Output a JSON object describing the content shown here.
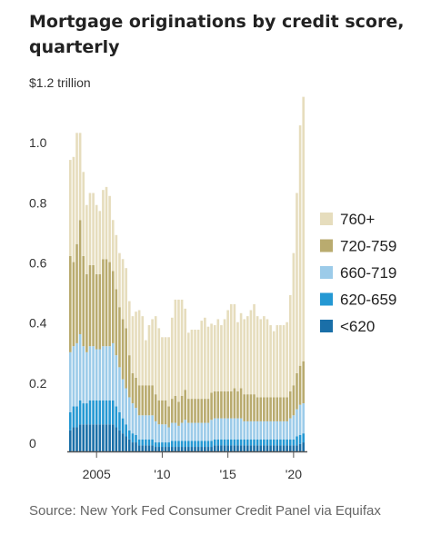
{
  "title": "Mortgage originations by credit score, quarterly",
  "source": "Source: New York Fed Consumer Credit Panel via Equifax",
  "chart_data": {
    "type": "bar",
    "stacked": true,
    "unit": "trillion",
    "ylim": [
      0,
      1.2
    ],
    "y_ticks": [
      {
        "value": 1.2,
        "label": "$1.2 trillion"
      },
      {
        "value": 1.0,
        "label": "1.0"
      },
      {
        "value": 0.8,
        "label": "0.8"
      },
      {
        "value": 0.6,
        "label": "0.6"
      },
      {
        "value": 0.4,
        "label": "0.4"
      },
      {
        "value": 0.2,
        "label": "0.2"
      },
      {
        "value": 0,
        "label": "0"
      }
    ],
    "x_ticks": [
      {
        "index": 8,
        "label": "2005"
      },
      {
        "index": 28,
        "label": "'10"
      },
      {
        "index": 48,
        "label": "'15"
      },
      {
        "index": 68,
        "label": "'20"
      }
    ],
    "x_start": "2003 Q1",
    "x_end": "2020 Q4",
    "legend_position": "right",
    "grid": false,
    "series": [
      {
        "name": "<620",
        "color": "#1a6fa8",
        "values": [
          0.07,
          0.08,
          0.08,
          0.09,
          0.09,
          0.09,
          0.09,
          0.09,
          0.09,
          0.09,
          0.09,
          0.09,
          0.09,
          0.09,
          0.08,
          0.07,
          0.06,
          0.05,
          0.04,
          0.03,
          0.03,
          0.02,
          0.02,
          0.02,
          0.02,
          0.02,
          0.015,
          0.015,
          0.015,
          0.015,
          0.015,
          0.015,
          0.015,
          0.015,
          0.015,
          0.015,
          0.015,
          0.015,
          0.015,
          0.015,
          0.015,
          0.015,
          0.015,
          0.015,
          0.02,
          0.02,
          0.02,
          0.02,
          0.02,
          0.02,
          0.02,
          0.02,
          0.02,
          0.02,
          0.02,
          0.02,
          0.02,
          0.02,
          0.02,
          0.02,
          0.02,
          0.02,
          0.02,
          0.02,
          0.02,
          0.02,
          0.02,
          0.02,
          0.02,
          0.02,
          0.025,
          0.03
        ]
      },
      {
        "name": "620-659",
        "color": "#2498d3",
        "values": [
          0.06,
          0.07,
          0.07,
          0.08,
          0.07,
          0.07,
          0.08,
          0.08,
          0.08,
          0.08,
          0.08,
          0.08,
          0.08,
          0.08,
          0.07,
          0.06,
          0.05,
          0.04,
          0.03,
          0.03,
          0.025,
          0.02,
          0.02,
          0.02,
          0.02,
          0.02,
          0.015,
          0.015,
          0.015,
          0.015,
          0.015,
          0.02,
          0.02,
          0.02,
          0.02,
          0.02,
          0.02,
          0.02,
          0.02,
          0.02,
          0.02,
          0.02,
          0.02,
          0.02,
          0.02,
          0.02,
          0.02,
          0.02,
          0.02,
          0.02,
          0.02,
          0.02,
          0.02,
          0.02,
          0.02,
          0.02,
          0.02,
          0.02,
          0.02,
          0.02,
          0.02,
          0.02,
          0.02,
          0.02,
          0.02,
          0.02,
          0.02,
          0.02,
          0.02,
          0.03,
          0.03,
          0.03
        ]
      },
      {
        "name": "660-719",
        "color": "#9ccbe9",
        "values": [
          0.2,
          0.2,
          0.21,
          0.22,
          0.19,
          0.17,
          0.18,
          0.18,
          0.17,
          0.17,
          0.18,
          0.18,
          0.18,
          0.19,
          0.17,
          0.15,
          0.13,
          0.12,
          0.11,
          0.1,
          0.09,
          0.08,
          0.08,
          0.08,
          0.08,
          0.08,
          0.07,
          0.06,
          0.06,
          0.06,
          0.05,
          0.06,
          0.06,
          0.05,
          0.06,
          0.07,
          0.06,
          0.06,
          0.06,
          0.06,
          0.06,
          0.06,
          0.06,
          0.07,
          0.07,
          0.07,
          0.07,
          0.07,
          0.07,
          0.07,
          0.07,
          0.07,
          0.07,
          0.06,
          0.06,
          0.06,
          0.06,
          0.06,
          0.06,
          0.06,
          0.06,
          0.06,
          0.06,
          0.06,
          0.06,
          0.06,
          0.06,
          0.07,
          0.08,
          0.09,
          0.1,
          0.1
        ]
      },
      {
        "name": "720-759",
        "color": "#b9ab6f",
        "values": [
          0.32,
          0.28,
          0.33,
          0.38,
          0.3,
          0.26,
          0.27,
          0.27,
          0.25,
          0.25,
          0.29,
          0.29,
          0.28,
          0.24,
          0.22,
          0.2,
          0.2,
          0.2,
          0.14,
          0.1,
          0.1,
          0.1,
          0.1,
          0.1,
          0.1,
          0.1,
          0.09,
          0.08,
          0.08,
          0.08,
          0.07,
          0.08,
          0.09,
          0.08,
          0.09,
          0.1,
          0.08,
          0.08,
          0.08,
          0.08,
          0.08,
          0.08,
          0.08,
          0.09,
          0.09,
          0.09,
          0.09,
          0.09,
          0.09,
          0.09,
          0.1,
          0.09,
          0.1,
          0.09,
          0.09,
          0.09,
          0.09,
          0.08,
          0.08,
          0.08,
          0.08,
          0.08,
          0.08,
          0.08,
          0.08,
          0.08,
          0.08,
          0.09,
          0.1,
          0.12,
          0.13,
          0.14
        ]
      },
      {
        "name": "760+",
        "color": "#e6ddbd",
        "values": [
          0.32,
          0.35,
          0.37,
          0.29,
          0.28,
          0.23,
          0.24,
          0.24,
          0.23,
          0.21,
          0.23,
          0.24,
          0.22,
          0.17,
          0.18,
          0.18,
          0.2,
          0.2,
          0.18,
          0.19,
          0.22,
          0.25,
          0.23,
          0.15,
          0.2,
          0.22,
          0.26,
          0.24,
          0.21,
          0.21,
          0.23,
          0.27,
          0.32,
          0.34,
          0.32,
          0.27,
          0.22,
          0.23,
          0.23,
          0.23,
          0.26,
          0.27,
          0.24,
          0.23,
          0.22,
          0.24,
          0.22,
          0.24,
          0.27,
          0.29,
          0.28,
          0.23,
          0.25,
          0.25,
          0.26,
          0.28,
          0.3,
          0.27,
          0.26,
          0.27,
          0.26,
          0.24,
          0.22,
          0.24,
          0.24,
          0.24,
          0.25,
          0.32,
          0.44,
          0.6,
          0.8,
          0.88
        ]
      }
    ]
  }
}
